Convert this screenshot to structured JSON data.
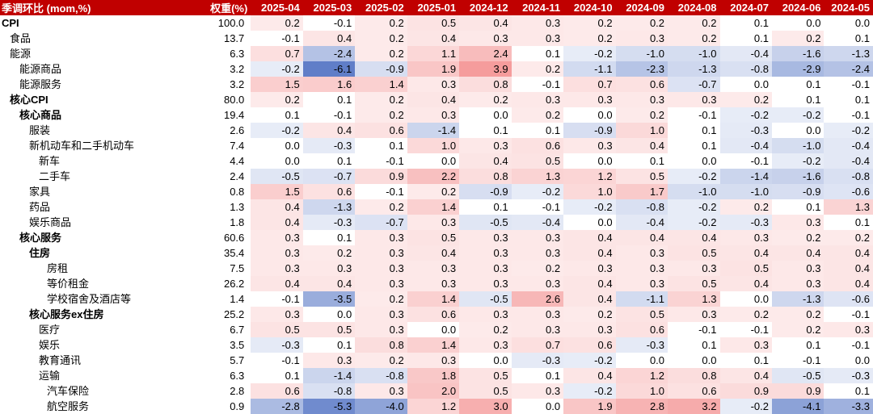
{
  "chart_data": {
    "type": "table",
    "header_label": "季调环比 (mom,%)",
    "weight_header": "权重(%)",
    "columns": [
      "2025-04",
      "2025-03",
      "2025-02",
      "2025-01",
      "2024-12",
      "2024-11",
      "2024-10",
      "2024-09",
      "2024-08",
      "2024-07",
      "2024-06",
      "2024-05"
    ],
    "rows": [
      {
        "label": "CPI",
        "indent": 0,
        "bold": true,
        "weight": "100.0",
        "values": [
          "0.2",
          "-0.1",
          "0.2",
          "0.5",
          "0.4",
          "0.3",
          "0.2",
          "0.2",
          "0.2",
          "0.1",
          "0.0",
          "0.0"
        ]
      },
      {
        "label": "食品",
        "indent": 1,
        "bold": false,
        "weight": "13.7",
        "values": [
          "-0.1",
          "0.4",
          "0.2",
          "0.4",
          "0.3",
          "0.3",
          "0.2",
          "0.3",
          "0.2",
          "0.1",
          "0.2",
          "0.1"
        ]
      },
      {
        "label": "能源",
        "indent": 1,
        "bold": false,
        "weight": "6.3",
        "values": [
          "0.7",
          "-2.4",
          "0.2",
          "1.1",
          "2.4",
          "0.1",
          "-0.2",
          "-1.0",
          "-1.0",
          "-0.4",
          "-1.6",
          "-1.3"
        ]
      },
      {
        "label": "能源商品",
        "indent": 2,
        "bold": false,
        "weight": "3.2",
        "values": [
          "-0.2",
          "-6.1",
          "-0.9",
          "1.9",
          "3.9",
          "0.2",
          "-1.1",
          "-2.3",
          "-1.3",
          "-0.8",
          "-2.9",
          "-2.4"
        ]
      },
      {
        "label": "能源服务",
        "indent": 2,
        "bold": false,
        "weight": "3.2",
        "values": [
          "1.5",
          "1.6",
          "1.4",
          "0.3",
          "0.8",
          "-0.1",
          "0.7",
          "0.6",
          "-0.7",
          "0.0",
          "0.1",
          "-0.1"
        ]
      },
      {
        "label": "核心CPI",
        "indent": 1,
        "bold": true,
        "weight": "80.0",
        "values": [
          "0.2",
          "0.1",
          "0.2",
          "0.4",
          "0.2",
          "0.3",
          "0.3",
          "0.3",
          "0.3",
          "0.2",
          "0.1",
          "0.1"
        ]
      },
      {
        "label": "核心商品",
        "indent": 2,
        "bold": true,
        "weight": "19.4",
        "values": [
          "0.1",
          "-0.1",
          "0.2",
          "0.3",
          "0.0",
          "0.2",
          "0.0",
          "0.2",
          "-0.1",
          "-0.2",
          "-0.2",
          "-0.1"
        ]
      },
      {
        "label": "服装",
        "indent": 3,
        "bold": false,
        "weight": "2.6",
        "values": [
          "-0.2",
          "0.4",
          "0.6",
          "-1.4",
          "0.1",
          "0.1",
          "-0.9",
          "1.0",
          "0.1",
          "-0.3",
          "0.0",
          "-0.2"
        ]
      },
      {
        "label": "新机动车和二手机动车",
        "indent": 3,
        "bold": false,
        "weight": "7.4",
        "values": [
          "0.0",
          "-0.3",
          "0.1",
          "1.0",
          "0.3",
          "0.6",
          "0.3",
          "0.4",
          "0.1",
          "-0.4",
          "-1.0",
          "-0.4"
        ]
      },
      {
        "label": "新车",
        "indent": 4,
        "bold": false,
        "weight": "4.4",
        "values": [
          "0.0",
          "0.1",
          "-0.1",
          "0.0",
          "0.4",
          "0.5",
          "0.0",
          "0.1",
          "0.0",
          "-0.1",
          "-0.2",
          "-0.4"
        ]
      },
      {
        "label": "二手车",
        "indent": 4,
        "bold": false,
        "weight": "2.4",
        "values": [
          "-0.5",
          "-0.7",
          "0.9",
          "2.2",
          "0.8",
          "1.3",
          "1.2",
          "0.5",
          "-0.2",
          "-1.4",
          "-1.6",
          "-0.8"
        ]
      },
      {
        "label": "家具",
        "indent": 3,
        "bold": false,
        "weight": "0.8",
        "values": [
          "1.5",
          "0.6",
          "-0.1",
          "0.2",
          "-0.9",
          "-0.2",
          "1.0",
          "1.7",
          "-1.0",
          "-1.0",
          "-0.9",
          "-0.6"
        ]
      },
      {
        "label": "药品",
        "indent": 3,
        "bold": false,
        "weight": "1.3",
        "values": [
          "0.4",
          "-1.3",
          "0.2",
          "1.4",
          "0.1",
          "-0.1",
          "-0.2",
          "-0.8",
          "-0.2",
          "0.2",
          "0.1",
          "1.3"
        ]
      },
      {
        "label": "娱乐商品",
        "indent": 3,
        "bold": false,
        "weight": "1.8",
        "values": [
          "0.4",
          "-0.3",
          "-0.7",
          "0.3",
          "-0.5",
          "-0.4",
          "0.0",
          "-0.4",
          "-0.2",
          "-0.3",
          "0.3",
          "0.1"
        ]
      },
      {
        "label": "核心服务",
        "indent": 2,
        "bold": true,
        "weight": "60.6",
        "values": [
          "0.3",
          "0.1",
          "0.3",
          "0.5",
          "0.3",
          "0.3",
          "0.4",
          "0.4",
          "0.4",
          "0.3",
          "0.2",
          "0.2"
        ]
      },
      {
        "label": "住房",
        "indent": 3,
        "bold": true,
        "weight": "35.4",
        "values": [
          "0.3",
          "0.2",
          "0.3",
          "0.4",
          "0.3",
          "0.3",
          "0.4",
          "0.3",
          "0.5",
          "0.4",
          "0.4",
          "0.4"
        ]
      },
      {
        "label": "房租",
        "indent": 5,
        "bold": false,
        "weight": "7.5",
        "values": [
          "0.3",
          "0.3",
          "0.3",
          "0.3",
          "0.3",
          "0.2",
          "0.3",
          "0.3",
          "0.3",
          "0.5",
          "0.3",
          "0.4"
        ]
      },
      {
        "label": "等价租金",
        "indent": 5,
        "bold": false,
        "weight": "26.2",
        "values": [
          "0.4",
          "0.4",
          "0.3",
          "0.3",
          "0.3",
          "0.3",
          "0.4",
          "0.3",
          "0.5",
          "0.4",
          "0.3",
          "0.4"
        ]
      },
      {
        "label": "学校宿舍及酒店等",
        "indent": 5,
        "bold": false,
        "weight": "1.4",
        "values": [
          "-0.1",
          "-3.5",
          "0.2",
          "1.4",
          "-0.5",
          "2.6",
          "0.4",
          "-1.1",
          "1.3",
          "0.0",
          "-1.3",
          "-0.6"
        ]
      },
      {
        "label": "核心服务ex住房",
        "indent": 3,
        "bold": true,
        "weight": "25.2",
        "values": [
          "0.3",
          "0.0",
          "0.3",
          "0.6",
          "0.3",
          "0.3",
          "0.2",
          "0.5",
          "0.3",
          "0.2",
          "0.2",
          "-0.1"
        ]
      },
      {
        "label": "医疗",
        "indent": 4,
        "bold": false,
        "weight": "6.7",
        "values": [
          "0.5",
          "0.5",
          "0.3",
          "0.0",
          "0.2",
          "0.3",
          "0.3",
          "0.6",
          "-0.1",
          "-0.1",
          "0.2",
          "0.3"
        ]
      },
      {
        "label": "娱乐",
        "indent": 4,
        "bold": false,
        "weight": "3.5",
        "values": [
          "-0.3",
          "0.1",
          "0.8",
          "1.4",
          "0.3",
          "0.7",
          "0.6",
          "-0.3",
          "0.1",
          "0.3",
          "0.1",
          "-0.1"
        ]
      },
      {
        "label": "教育通讯",
        "indent": 4,
        "bold": false,
        "weight": "5.7",
        "values": [
          "-0.1",
          "0.3",
          "0.2",
          "0.3",
          "0.0",
          "-0.3",
          "-0.2",
          "0.0",
          "0.0",
          "0.1",
          "-0.1",
          "0.0"
        ]
      },
      {
        "label": "运输",
        "indent": 4,
        "bold": false,
        "weight": "6.3",
        "values": [
          "0.1",
          "-1.4",
          "-0.8",
          "1.8",
          "0.5",
          "0.1",
          "0.4",
          "1.2",
          "0.8",
          "0.4",
          "-0.5",
          "-0.3"
        ]
      },
      {
        "label": "汽车保险",
        "indent": 5,
        "bold": false,
        "weight": "2.8",
        "values": [
          "0.6",
          "-0.8",
          "0.3",
          "2.0",
          "0.5",
          "0.3",
          "-0.2",
          "1.0",
          "0.6",
          "0.9",
          "0.9",
          "0.1"
        ]
      },
      {
        "label": "航空服务",
        "indent": 5,
        "bold": false,
        "weight": "0.9",
        "values": [
          "-2.8",
          "-5.3",
          "-4.0",
          "1.2",
          "3.0",
          "0.0",
          "1.9",
          "2.8",
          "3.2",
          "-0.2",
          "-4.1",
          "-3.3"
        ]
      }
    ]
  }
}
